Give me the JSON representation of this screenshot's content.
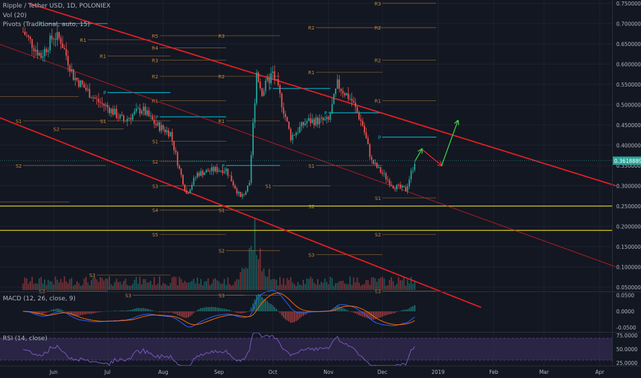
{
  "header": {
    "symbol_line": "Ripple / Tether USD, 1D, POLONIEX",
    "volume_line": "Vol (20)",
    "pivots_line": "Pivots (Traditional, auto, 15)"
  },
  "indicators": {
    "macd_label": "MACD (12, 26, close, 9)",
    "rsi_label": "RSI (14, close)"
  },
  "chart_data": {
    "type": "candlestick",
    "title": "Ripple / Tether USD, 1D, POLONIEX",
    "x_tick_labels": [
      "Jun",
      "Jul",
      "Aug",
      "Sep",
      "Oct",
      "Nov",
      "Dec",
      "2019",
      "Feb",
      "Mar",
      "Apr"
    ],
    "price_axis": {
      "scale": "linear",
      "range": [
        0.0,
        0.76
      ],
      "tick_values": [
        0.05,
        0.1,
        0.15,
        0.2,
        0.25,
        0.3,
        0.35,
        0.4,
        0.45,
        0.5,
        0.55,
        0.6,
        0.65,
        0.7,
        0.75
      ],
      "tick_labels": [
        "0.05000000",
        "0.10000000",
        "0.15000000",
        "0.20000000",
        "0.25000000",
        "0.30000000",
        "0.35000000",
        "0.40000000",
        "0.45000000",
        "0.50000000",
        "0.55000000",
        "0.60000000",
        "0.65000000",
        "0.70000000",
        "0.75000000"
      ],
      "last_price": 0.36188894,
      "last_price_label": "0.36188894"
    },
    "price_path_anchors": [
      {
        "date": "2018-05-15",
        "close": 0.68
      },
      {
        "date": "2018-05-25",
        "close": 0.62
      },
      {
        "date": "2018-06-01",
        "close": 0.67
      },
      {
        "date": "2018-06-05",
        "close": 0.66
      },
      {
        "date": "2018-06-12",
        "close": 0.57
      },
      {
        "date": "2018-06-25",
        "close": 0.51
      },
      {
        "date": "2018-07-02",
        "close": 0.49
      },
      {
        "date": "2018-07-10",
        "close": 0.46
      },
      {
        "date": "2018-07-20",
        "close": 0.49
      },
      {
        "date": "2018-07-28",
        "close": 0.45
      },
      {
        "date": "2018-08-05",
        "close": 0.43
      },
      {
        "date": "2018-08-10",
        "close": 0.34
      },
      {
        "date": "2018-08-14",
        "close": 0.28
      },
      {
        "date": "2018-08-20",
        "close": 0.33
      },
      {
        "date": "2018-08-30",
        "close": 0.34
      },
      {
        "date": "2018-09-05",
        "close": 0.34
      },
      {
        "date": "2018-09-13",
        "close": 0.27
      },
      {
        "date": "2018-09-18",
        "close": 0.3
      },
      {
        "date": "2018-09-20",
        "close": 0.45
      },
      {
        "date": "2018-09-22",
        "close": 0.58
      },
      {
        "date": "2018-09-25",
        "close": 0.53
      },
      {
        "date": "2018-10-01",
        "close": 0.58
      },
      {
        "date": "2018-10-05",
        "close": 0.52
      },
      {
        "date": "2018-10-11",
        "close": 0.42
      },
      {
        "date": "2018-10-20",
        "close": 0.46
      },
      {
        "date": "2018-11-01",
        "close": 0.46
      },
      {
        "date": "2018-11-06",
        "close": 0.55
      },
      {
        "date": "2018-11-14",
        "close": 0.51
      },
      {
        "date": "2018-11-20",
        "close": 0.45
      },
      {
        "date": "2018-11-25",
        "close": 0.36
      },
      {
        "date": "2018-12-07",
        "close": 0.3
      },
      {
        "date": "2018-12-14",
        "close": 0.29
      },
      {
        "date": "2018-12-19",
        "close": 0.36
      }
    ],
    "channel_lines": [
      {
        "from": {
          "date": "2018-05-18",
          "price": 0.75
        },
        "to": {
          "date": "2019-04-10",
          "price": 0.3
        }
      },
      {
        "from": {
          "date": "2018-04-25",
          "price": 0.66
        },
        "to": {
          "date": "2019-04-10",
          "price": 0.1
        }
      },
      {
        "from": {
          "date": "2018-04-25",
          "price": 0.48
        },
        "to": {
          "date": "2019-01-25",
          "price": 0.0
        }
      }
    ],
    "horizontal_lines": [
      {
        "price": 0.25
      },
      {
        "price": 0.19
      }
    ],
    "projection_arrows": [
      {
        "color": "green",
        "from": {
          "date": "2018-12-19",
          "price": 0.36
        },
        "to": {
          "date": "2018-12-23",
          "price": 0.39
        }
      },
      {
        "color": "red",
        "from": {
          "date": "2018-12-23",
          "price": 0.39
        },
        "to": {
          "date": "2019-01-03",
          "price": 0.35
        }
      },
      {
        "color": "green",
        "from": {
          "date": "2019-01-03",
          "price": 0.35
        },
        "to": {
          "date": "2019-01-12",
          "price": 0.46
        }
      }
    ],
    "pivot_levels": [
      {
        "label": "R1",
        "price": 0.7,
        "start": "2018-05-28",
        "end": "2018-07-01",
        "kind": "P"
      },
      {
        "label": "R1",
        "price": 0.66,
        "start": "2018-06-20",
        "end": "2018-07-25",
        "kind": "R"
      },
      {
        "label": "S1",
        "price": 0.52,
        "start": "2018-05-01",
        "end": "2018-06-15",
        "kind": "S"
      },
      {
        "label": "S1",
        "price": 0.46,
        "start": "2018-05-15",
        "end": "2018-06-30",
        "kind": "S"
      },
      {
        "label": "S2",
        "price": 0.35,
        "start": "2018-05-15",
        "end": "2018-06-30",
        "kind": "S"
      },
      {
        "label": "S2",
        "price": 0.26,
        "start": "2018-05-01",
        "end": "2018-06-10",
        "kind": "S"
      },
      {
        "label": "S3",
        "price": 0.04,
        "start": "2018-05-28",
        "end": "2018-07-01",
        "kind": "S"
      },
      {
        "label": "P",
        "price": 0.53,
        "start": "2018-07-01",
        "end": "2018-08-05",
        "kind": "P"
      },
      {
        "label": "R1",
        "price": 0.62,
        "start": "2018-07-01",
        "end": "2018-08-05",
        "kind": "R"
      },
      {
        "label": "S1",
        "price": 0.46,
        "start": "2018-07-01",
        "end": "2018-08-05",
        "kind": "S"
      },
      {
        "label": "S2",
        "price": 0.44,
        "start": "2018-06-05",
        "end": "2018-07-10",
        "kind": "S"
      },
      {
        "label": "S3",
        "price": 0.08,
        "start": "2018-06-25",
        "end": "2018-08-05",
        "kind": "S"
      },
      {
        "label": "R5",
        "price": 0.67,
        "start": "2018-07-30",
        "end": "2018-09-05",
        "kind": "R"
      },
      {
        "label": "R4",
        "price": 0.64,
        "start": "2018-07-30",
        "end": "2018-09-05",
        "kind": "R"
      },
      {
        "label": "R3",
        "price": 0.61,
        "start": "2018-07-30",
        "end": "2018-09-05",
        "kind": "R"
      },
      {
        "label": "R2",
        "price": 0.57,
        "start": "2018-07-30",
        "end": "2018-09-05",
        "kind": "R"
      },
      {
        "label": "R1",
        "price": 0.51,
        "start": "2018-07-30",
        "end": "2018-09-05",
        "kind": "R"
      },
      {
        "label": "P",
        "price": 0.47,
        "start": "2018-07-30",
        "end": "2018-09-05",
        "kind": "P"
      },
      {
        "label": "S1",
        "price": 0.41,
        "start": "2018-07-30",
        "end": "2018-09-05",
        "kind": "S"
      },
      {
        "label": "S2",
        "price": 0.36,
        "start": "2018-07-30",
        "end": "2018-09-05",
        "kind": "S"
      },
      {
        "label": "S3",
        "price": 0.3,
        "start": "2018-07-30",
        "end": "2018-09-05",
        "kind": "S"
      },
      {
        "label": "S4",
        "price": 0.24,
        "start": "2018-07-30",
        "end": "2018-09-05",
        "kind": "S"
      },
      {
        "label": "S5",
        "price": 0.18,
        "start": "2018-07-30",
        "end": "2018-09-05",
        "kind": "S"
      },
      {
        "label": "R3",
        "price": 0.67,
        "start": "2018-09-05",
        "end": "2018-10-05",
        "kind": "R"
      },
      {
        "label": "R2",
        "price": 0.57,
        "start": "2018-09-05",
        "end": "2018-10-05",
        "kind": "R"
      },
      {
        "label": "R1",
        "price": 0.46,
        "start": "2018-09-05",
        "end": "2018-10-05",
        "kind": "R"
      },
      {
        "label": "P",
        "price": 0.35,
        "start": "2018-09-05",
        "end": "2018-10-05",
        "kind": "P"
      },
      {
        "label": "S1",
        "price": 0.24,
        "start": "2018-09-05",
        "end": "2018-10-05",
        "kind": "S"
      },
      {
        "label": "S2",
        "price": 0.14,
        "start": "2018-09-05",
        "end": "2018-10-05",
        "kind": "S"
      },
      {
        "label": "S3",
        "price": 0.03,
        "start": "2018-09-05",
        "end": "2018-10-05",
        "kind": "S"
      },
      {
        "label": "P",
        "price": 0.54,
        "start": "2018-10-01",
        "end": "2018-11-02",
        "kind": "P"
      },
      {
        "label": "S1",
        "price": 0.3,
        "start": "2018-10-01",
        "end": "2018-11-02",
        "kind": "S"
      },
      {
        "label": "R2",
        "price": 0.69,
        "start": "2018-10-25",
        "end": "2018-12-01",
        "kind": "R"
      },
      {
        "label": "R1",
        "price": 0.58,
        "start": "2018-10-25",
        "end": "2018-12-01",
        "kind": "R"
      },
      {
        "label": "P",
        "price": 0.48,
        "start": "2018-11-01",
        "end": "2018-12-01",
        "kind": "P"
      },
      {
        "label": "S1",
        "price": 0.35,
        "start": "2018-10-25",
        "end": "2018-12-01",
        "kind": "S"
      },
      {
        "label": "S2",
        "price": 0.25,
        "start": "2018-10-25",
        "end": "2018-12-01",
        "kind": "S"
      },
      {
        "label": "S3",
        "price": 0.13,
        "start": "2018-10-25",
        "end": "2018-12-01",
        "kind": "S"
      },
      {
        "label": "S3",
        "price": 0.03,
        "start": "2018-07-15",
        "end": "2018-09-15",
        "kind": "S"
      },
      {
        "label": "R3",
        "price": 0.75,
        "start": "2018-12-01",
        "end": "2018-12-31",
        "kind": "R"
      },
      {
        "label": "R2",
        "price": 0.69,
        "start": "2018-12-01",
        "end": "2018-12-31",
        "kind": "R"
      },
      {
        "label": "R2",
        "price": 0.61,
        "start": "2018-12-01",
        "end": "2018-12-31",
        "kind": "R"
      },
      {
        "label": "R1",
        "price": 0.51,
        "start": "2018-12-01",
        "end": "2018-12-31",
        "kind": "R"
      },
      {
        "label": "P",
        "price": 0.42,
        "start": "2018-12-01",
        "end": "2018-12-31",
        "kind": "P"
      },
      {
        "label": "S1",
        "price": 0.27,
        "start": "2018-12-01",
        "end": "2018-12-31",
        "kind": "S"
      },
      {
        "label": "S2",
        "price": 0.18,
        "start": "2018-12-01",
        "end": "2018-12-31",
        "kind": "S"
      },
      {
        "label": "S3",
        "price": 0.04,
        "start": "2018-12-01",
        "end": "2018-12-31",
        "kind": "S"
      }
    ],
    "volume_spike": {
      "date": "2018-09-21",
      "note_units": "relative"
    },
    "macd_axis": {
      "range": [
        -0.06,
        0.06
      ],
      "tick_values": [
        0.05,
        0.0,
        -0.05
      ],
      "tick_labels": [
        "0.0500",
        "0.0000",
        "-0.0500"
      ]
    },
    "rsi_axis": {
      "range": [
        20,
        80
      ],
      "tick_values": [
        75,
        50,
        25
      ],
      "tick_labels": [
        "75.0000",
        "50.0000",
        "25.0000"
      ],
      "band": [
        30,
        70
      ]
    },
    "colors": {
      "background": "#131722",
      "up": "#26a69a",
      "down": "#ef5350",
      "channel": "#e51f23",
      "horizontal": "#f0e21d",
      "pivot_p": "#00bcd4",
      "pivot_rs": "#c68a3a",
      "macd_line": "#2962ff",
      "signal_line": "#ff6d00",
      "rsi_line": "#7e57c2",
      "rsi_band": "#3a2f5b",
      "arrow_green": "#3fe24b",
      "arrow_red": "#ff2a2a",
      "last_price_bg": "#26a69a"
    }
  }
}
